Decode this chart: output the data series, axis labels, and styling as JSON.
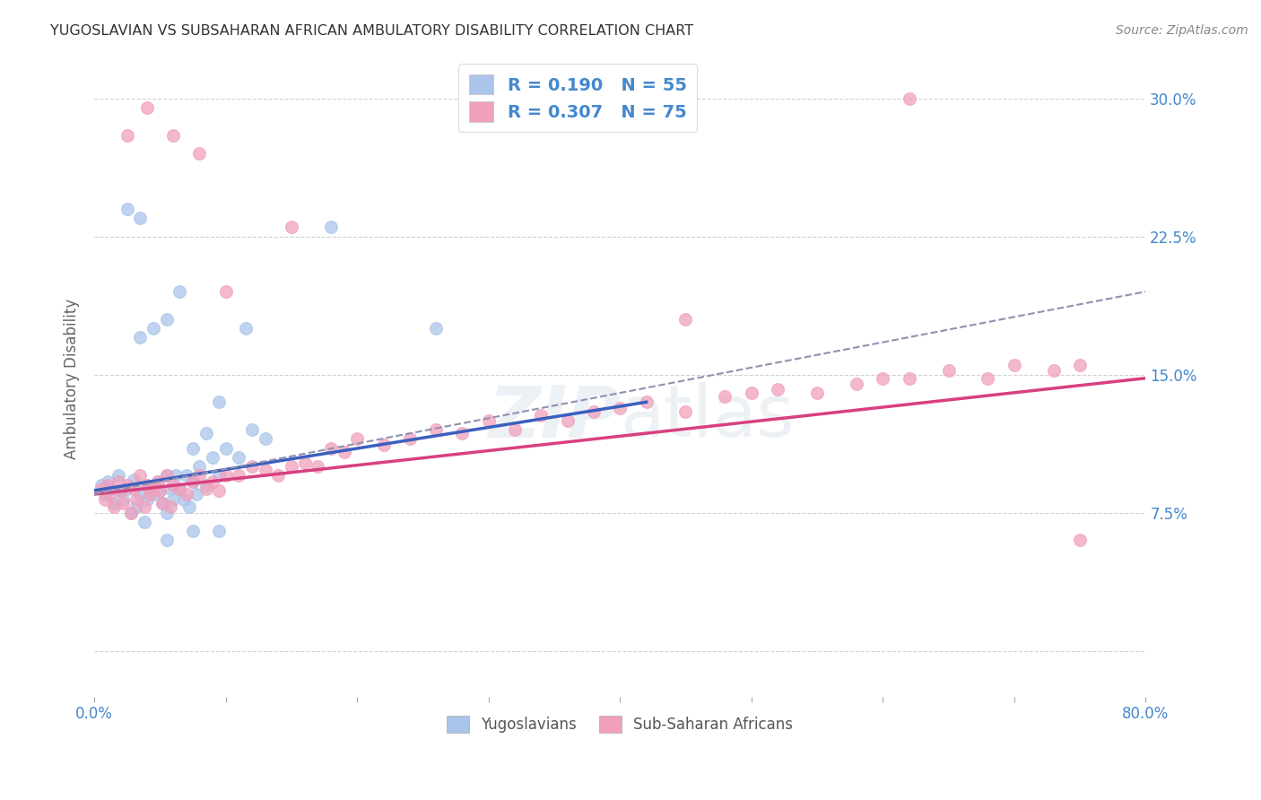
{
  "title": "YUGOSLAVIAN VS SUBSAHARAN AFRICAN AMBULATORY DISABILITY CORRELATION CHART",
  "source": "Source: ZipAtlas.com",
  "ylabel": "Ambulatory Disability",
  "xlim": [
    0.0,
    0.8
  ],
  "ylim": [
    -0.025,
    0.32
  ],
  "yticks": [
    0.0,
    0.075,
    0.15,
    0.225,
    0.3
  ],
  "ytick_labels": [
    "",
    "7.5%",
    "15.0%",
    "22.5%",
    "30.0%"
  ],
  "xticks": [
    0.0,
    0.1,
    0.2,
    0.3,
    0.4,
    0.5,
    0.6,
    0.7,
    0.8
  ],
  "xtick_labels": [
    "0.0%",
    "",
    "",
    "",
    "",
    "",
    "",
    "",
    "80.0%"
  ],
  "legend_R1": "R = 0.190",
  "legend_N1": "N = 55",
  "legend_R2": "R = 0.307",
  "legend_N2": "N = 75",
  "blue_color": "#aac4ea",
  "pink_color": "#f0a0bc",
  "blue_line_color": "#3a5fbe",
  "pink_line_color": "#d84080",
  "dashed_line_color": "#9090b0",
  "label_color": "#4488cc",
  "background_color": "#ffffff",
  "grid_color": "#cccccc",
  "yugoslavians_x": [
    0.005,
    0.008,
    0.01,
    0.012,
    0.015,
    0.018,
    0.02,
    0.022,
    0.025,
    0.028,
    0.03,
    0.032,
    0.035,
    0.038,
    0.04,
    0.04,
    0.042,
    0.045,
    0.048,
    0.05,
    0.052,
    0.055,
    0.055,
    0.058,
    0.06,
    0.062,
    0.065,
    0.068,
    0.07,
    0.072,
    0.075,
    0.078,
    0.08,
    0.085,
    0.09,
    0.095,
    0.1,
    0.11,
    0.12,
    0.13,
    0.035,
    0.045,
    0.055,
    0.065,
    0.075,
    0.085,
    0.095,
    0.115,
    0.055,
    0.075,
    0.095,
    0.025,
    0.035,
    0.18,
    0.26
  ],
  "yugoslavians_y": [
    0.09,
    0.085,
    0.092,
    0.088,
    0.08,
    0.095,
    0.087,
    0.082,
    0.088,
    0.075,
    0.093,
    0.078,
    0.085,
    0.07,
    0.09,
    0.082,
    0.088,
    0.085,
    0.092,
    0.087,
    0.08,
    0.095,
    0.075,
    0.088,
    0.082,
    0.095,
    0.088,
    0.082,
    0.095,
    0.078,
    0.092,
    0.085,
    0.1,
    0.09,
    0.105,
    0.095,
    0.11,
    0.105,
    0.12,
    0.115,
    0.17,
    0.175,
    0.18,
    0.195,
    0.11,
    0.118,
    0.135,
    0.175,
    0.06,
    0.065,
    0.065,
    0.24,
    0.235,
    0.23,
    0.175
  ],
  "subsaharan_x": [
    0.005,
    0.008,
    0.01,
    0.012,
    0.015,
    0.018,
    0.02,
    0.022,
    0.025,
    0.028,
    0.03,
    0.032,
    0.035,
    0.038,
    0.04,
    0.042,
    0.045,
    0.048,
    0.05,
    0.052,
    0.055,
    0.058,
    0.06,
    0.065,
    0.07,
    0.075,
    0.08,
    0.085,
    0.09,
    0.095,
    0.1,
    0.11,
    0.12,
    0.13,
    0.14,
    0.15,
    0.16,
    0.17,
    0.18,
    0.19,
    0.2,
    0.22,
    0.24,
    0.26,
    0.28,
    0.3,
    0.32,
    0.34,
    0.36,
    0.38,
    0.4,
    0.42,
    0.45,
    0.48,
    0.5,
    0.52,
    0.55,
    0.58,
    0.6,
    0.62,
    0.65,
    0.68,
    0.7,
    0.73,
    0.75,
    0.025,
    0.04,
    0.06,
    0.08,
    0.1,
    0.15,
    0.3,
    0.45,
    0.62,
    0.75
  ],
  "subsaharan_y": [
    0.088,
    0.082,
    0.09,
    0.085,
    0.078,
    0.092,
    0.087,
    0.08,
    0.09,
    0.075,
    0.088,
    0.082,
    0.095,
    0.078,
    0.09,
    0.085,
    0.088,
    0.092,
    0.087,
    0.08,
    0.095,
    0.078,
    0.09,
    0.088,
    0.085,
    0.092,
    0.095,
    0.088,
    0.092,
    0.087,
    0.095,
    0.095,
    0.1,
    0.098,
    0.095,
    0.1,
    0.102,
    0.1,
    0.11,
    0.108,
    0.115,
    0.112,
    0.115,
    0.12,
    0.118,
    0.125,
    0.12,
    0.128,
    0.125,
    0.13,
    0.132,
    0.135,
    0.13,
    0.138,
    0.14,
    0.142,
    0.14,
    0.145,
    0.148,
    0.148,
    0.152,
    0.148,
    0.155,
    0.152,
    0.155,
    0.28,
    0.295,
    0.28,
    0.27,
    0.195,
    0.23,
    0.295,
    0.18,
    0.3,
    0.06
  ],
  "blue_trendline_x": [
    0.0,
    0.42
  ],
  "blue_trendline_y": [
    0.087,
    0.135
  ],
  "pink_trendline_x": [
    0.0,
    0.8
  ],
  "pink_trendline_y": [
    0.085,
    0.148
  ],
  "dashed_trendline_x": [
    0.0,
    0.8
  ],
  "dashed_trendline_y": [
    0.085,
    0.195
  ]
}
